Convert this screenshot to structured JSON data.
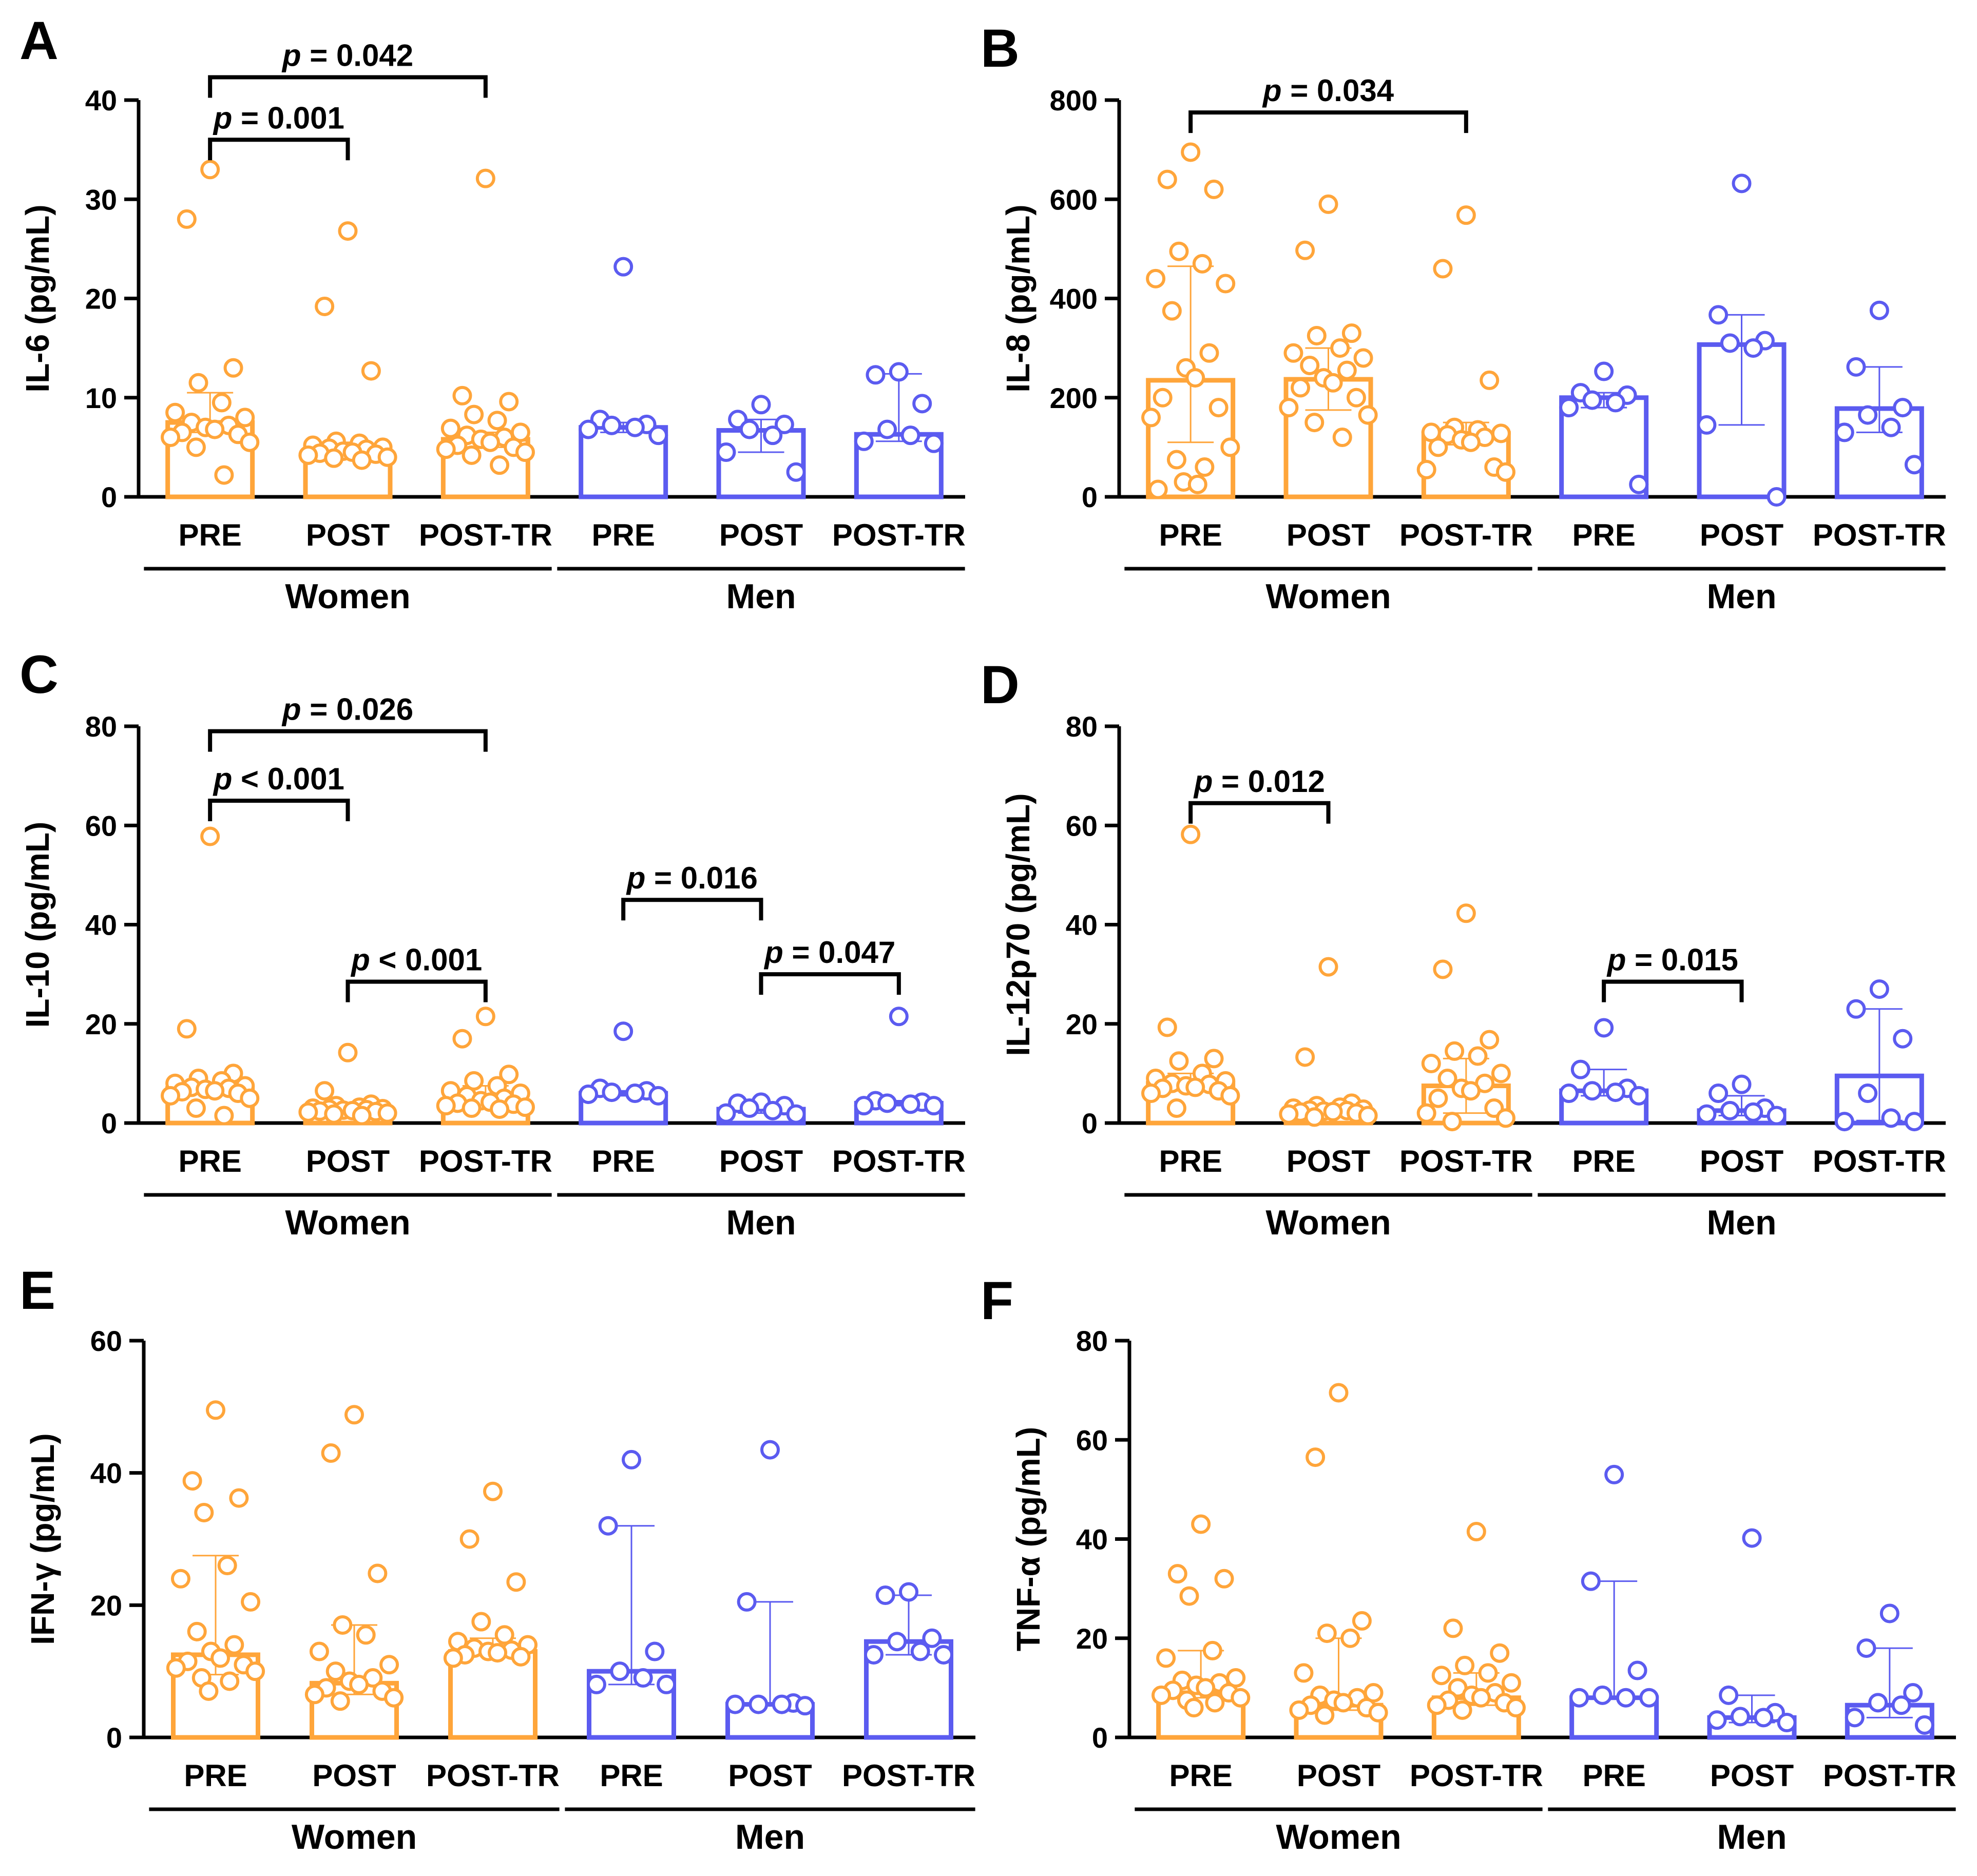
{
  "colors": {
    "women": "#FFA53A",
    "men": "#5B5BF0",
    "axis": "#000000"
  },
  "chart_data": [
    {
      "id": "A",
      "type": "bar",
      "letter": "A",
      "ylabel": "IL-6 (pg/mL)",
      "ylim": [
        0,
        40
      ],
      "yticks": [
        0,
        10,
        20,
        30,
        40
      ],
      "categories": [
        "PRE",
        "POST",
        "POST-TR",
        "PRE",
        "POST",
        "POST-TR"
      ],
      "groups": [
        "Women",
        "Men"
      ],
      "series": [
        {
          "name": "Women PRE",
          "group": "Women",
          "bar": 7.5,
          "err": [
            6.5,
            10.5
          ],
          "points": [
            33,
            28,
            13,
            11.5,
            9.5,
            8.5,
            8,
            7.5,
            7.2,
            7,
            6.8,
            6.5,
            6.3,
            6,
            5.5,
            5,
            2.2
          ]
        },
        {
          "name": "Women POST",
          "group": "Women",
          "bar": 4.5,
          "err": [
            4,
            5.5
          ],
          "points": [
            26.8,
            19.2,
            12.7,
            5.6,
            5.4,
            5.2,
            5,
            4.9,
            4.8,
            4.6,
            4.5,
            4.4,
            4.3,
            4.2,
            4,
            3.9,
            3.7
          ]
        },
        {
          "name": "Women POST-TR",
          "group": "Women",
          "bar": 5.8,
          "err": [
            5,
            6.5
          ],
          "points": [
            32.1,
            10.2,
            9.6,
            8.3,
            7.7,
            6.9,
            6.5,
            6.2,
            6,
            5.8,
            5.5,
            5.2,
            5,
            4.8,
            4.5,
            4.2,
            3.2
          ]
        },
        {
          "name": "Men PRE",
          "group": "Men",
          "bar": 7.0,
          "err": [
            6.5,
            7.5
          ],
          "points": [
            23.2,
            7.8,
            7.3,
            7.2,
            7.0,
            6.8,
            6.2
          ]
        },
        {
          "name": "Men POST",
          "group": "Men",
          "bar": 6.7,
          "err": [
            4.5,
            7.8
          ],
          "points": [
            9.3,
            7.8,
            7.3,
            6.8,
            6.2,
            4.5,
            2.5
          ]
        },
        {
          "name": "Men POST-TR",
          "group": "Men",
          "bar": 6.3,
          "err": [
            5.6,
            12.4
          ],
          "points": [
            12.6,
            12.3,
            9.4,
            6.8,
            6.2,
            5.6,
            5.4
          ]
        }
      ],
      "brackets": [
        {
          "from": 0,
          "to": 2,
          "y": 42.3,
          "label_p": "p",
          "label_rest": " = 0.042"
        },
        {
          "from": 0,
          "to": 1,
          "y": 36.0,
          "label_p": "p",
          "label_rest": " = 0.001"
        }
      ]
    },
    {
      "id": "B",
      "type": "bar",
      "letter": "B",
      "ylabel": "IL-8 (pg/mL)",
      "ylim": [
        0,
        800
      ],
      "yticks": [
        0,
        200,
        400,
        600,
        800
      ],
      "categories": [
        "PRE",
        "POST",
        "POST-TR",
        "PRE",
        "POST",
        "POST-TR"
      ],
      "groups": [
        "Women",
        "Men"
      ],
      "series": [
        {
          "name": "Women PRE",
          "group": "Women",
          "bar": 235,
          "err": [
            110,
            465
          ],
          "points": [
            695,
            640,
            620,
            495,
            470,
            440,
            430,
            375,
            290,
            260,
            240,
            200,
            180,
            160,
            100,
            75,
            60,
            30,
            25,
            15
          ]
        },
        {
          "name": "Women POST",
          "group": "Women",
          "bar": 237,
          "err": [
            175,
            300
          ],
          "points": [
            590,
            497,
            330,
            325,
            300,
            290,
            280,
            265,
            255,
            240,
            230,
            220,
            200,
            180,
            165,
            150,
            120
          ]
        },
        {
          "name": "Women POST-TR",
          "group": "Women",
          "bar": 128,
          "err": [
            105,
            150
          ],
          "points": [
            568,
            460,
            235,
            140,
            135,
            130,
            128,
            125,
            120,
            115,
            110,
            100,
            60,
            55,
            50
          ]
        },
        {
          "name": "Men PRE",
          "group": "Men",
          "bar": 200,
          "err": [
            180,
            210
          ],
          "points": [
            253,
            210,
            205,
            195,
            190,
            180,
            25
          ]
        },
        {
          "name": "Men POST",
          "group": "Men",
          "bar": 307,
          "err": [
            145,
            367
          ],
          "points": [
            632,
            367,
            315,
            310,
            300,
            145,
            0
          ]
        },
        {
          "name": "Men POST-TR",
          "group": "Men",
          "bar": 178,
          "err": [
            130,
            262
          ],
          "points": [
            376,
            262,
            180,
            165,
            140,
            130,
            65
          ]
        }
      ],
      "brackets": [
        {
          "from": 0,
          "to": 2,
          "y": 775,
          "label_p": "p",
          "label_rest": " = 0.034"
        }
      ]
    },
    {
      "id": "C",
      "type": "bar",
      "letter": "C",
      "ylabel": "IL-10 (pg/mL)",
      "ylim": [
        0,
        80
      ],
      "yticks": [
        0,
        20,
        40,
        60,
        80
      ],
      "categories": [
        "PRE",
        "POST",
        "POST-TR",
        "PRE",
        "POST",
        "POST-TR"
      ],
      "groups": [
        "Women",
        "Men"
      ],
      "series": [
        {
          "name": "Women PRE",
          "group": "Women",
          "bar": 7.0,
          "err": [
            6,
            8
          ],
          "points": [
            57.8,
            19,
            10,
            9,
            8.5,
            8,
            7.5,
            7.2,
            7,
            6.8,
            6.5,
            6.3,
            6,
            5.5,
            5,
            3,
            1.5
          ]
        },
        {
          "name": "Women POST",
          "group": "Women",
          "bar": 2.8,
          "err": [
            2.5,
            3.5
          ],
          "points": [
            14.2,
            6.5,
            3.8,
            3.5,
            3.2,
            3,
            2.9,
            2.8,
            2.7,
            2.6,
            2.5,
            2.4,
            2.3,
            2.2,
            2,
            1.8,
            1.5
          ]
        },
        {
          "name": "Women POST-TR",
          "group": "Women",
          "bar": 4.5,
          "err": [
            3.5,
            7.5
          ],
          "points": [
            21.5,
            17,
            9.8,
            8.5,
            7.5,
            6.5,
            6,
            5.5,
            5,
            4.5,
            4.2,
            4,
            3.8,
            3.5,
            3.2,
            3,
            2.8
          ]
        },
        {
          "name": "Men PRE",
          "group": "Men",
          "bar": 6.0,
          "err": [
            5.5,
            6.5
          ],
          "points": [
            18.5,
            7,
            6.5,
            6.2,
            6,
            5.8,
            5.5
          ]
        },
        {
          "name": "Men POST",
          "group": "Men",
          "bar": 2.8,
          "err": [
            2,
            4
          ],
          "points": [
            4.2,
            4,
            3.5,
            3,
            2.5,
            2,
            1.8
          ]
        },
        {
          "name": "Men POST-TR",
          "group": "Men",
          "bar": 4.0,
          "err": [
            3.5,
            4.5
          ],
          "points": [
            21.5,
            4.5,
            4.2,
            4,
            3.8,
            3.5,
            3.5
          ]
        }
      ],
      "brackets": [
        {
          "from": 0,
          "to": 2,
          "y": 79.0,
          "label_p": "p",
          "label_rest": " = 0.026"
        },
        {
          "from": 0,
          "to": 1,
          "y": 65.0,
          "label_p": "p",
          "label_rest": " < 0.001"
        },
        {
          "from": 1,
          "to": 2,
          "y": 28.5,
          "label_p": "p",
          "label_rest": " < 0.001"
        },
        {
          "from": 3,
          "to": 4,
          "y": 45.0,
          "label_p": "p",
          "label_rest": " = 0.016"
        },
        {
          "from": 4,
          "to": 5,
          "y": 30.0,
          "label_p": "p",
          "label_rest": " = 0.047"
        }
      ]
    },
    {
      "id": "D",
      "type": "bar",
      "letter": "D",
      "ylabel": "IL-12p70 (pg/mL)",
      "ylim": [
        0,
        80
      ],
      "yticks": [
        0,
        20,
        40,
        60,
        80
      ],
      "categories": [
        "PRE",
        "POST",
        "POST-TR",
        "PRE",
        "POST",
        "POST-TR"
      ],
      "groups": [
        "Women",
        "Men"
      ],
      "series": [
        {
          "name": "Women PRE",
          "group": "Women",
          "bar": 8.0,
          "err": [
            6.5,
            10
          ],
          "points": [
            58.2,
            19.3,
            13,
            12.5,
            10,
            9,
            8.5,
            8,
            7.8,
            7.5,
            7.2,
            7,
            6.5,
            6,
            5.5,
            3
          ]
        },
        {
          "name": "Women POST",
          "group": "Women",
          "bar": 2.5,
          "err": [
            2,
            3.5
          ],
          "points": [
            31.5,
            13.3,
            4,
            3.5,
            3.2,
            3,
            2.8,
            2.6,
            2.5,
            2.4,
            2.3,
            2.2,
            2,
            1.8,
            1.5,
            1.2
          ]
        },
        {
          "name": "Women POST-TR",
          "group": "Women",
          "bar": 7.5,
          "err": [
            2,
            13
          ],
          "points": [
            42.3,
            31,
            16.8,
            14.5,
            13.5,
            12,
            10,
            9,
            8,
            7,
            6.5,
            5,
            3,
            2,
            1,
            0.3
          ]
        },
        {
          "name": "Men PRE",
          "group": "Men",
          "bar": 6.5,
          "err": [
            5.5,
            10.8
          ],
          "points": [
            19.2,
            10.8,
            7,
            6.5,
            6.2,
            6,
            5.5
          ]
        },
        {
          "name": "Men POST",
          "group": "Men",
          "bar": 2.5,
          "err": [
            1.5,
            5.5
          ],
          "points": [
            7.8,
            6,
            3,
            2.5,
            2.2,
            1.8,
            1.5
          ]
        },
        {
          "name": "Men POST-TR",
          "group": "Men",
          "bar": 9.5,
          "err": [
            0.5,
            23
          ],
          "points": [
            27,
            23,
            17,
            6,
            1,
            0.3,
            0.3
          ]
        }
      ],
      "brackets": [
        {
          "from": 0,
          "to": 1,
          "y": 64.5,
          "label_p": "p",
          "label_rest": " = 0.012"
        },
        {
          "from": 3,
          "to": 4,
          "y": 28.5,
          "label_p": "p",
          "label_rest": " = 0.015"
        }
      ]
    },
    {
      "id": "E",
      "type": "bar",
      "letter": "E",
      "ylabel": "IFN-γ (pg/mL)",
      "ylim": [
        0,
        60
      ],
      "yticks": [
        0,
        20,
        40,
        60
      ],
      "categories": [
        "PRE",
        "POST",
        "POST-TR",
        "PRE",
        "POST",
        "POST-TR"
      ],
      "groups": [
        "Women",
        "Men"
      ],
      "series": [
        {
          "name": "Women PRE",
          "group": "Women",
          "bar": 12.5,
          "err": [
            9.5,
            27.5
          ],
          "points": [
            49.5,
            38.8,
            36.2,
            34,
            26,
            24,
            20.5,
            16,
            14,
            13,
            12,
            11.5,
            11,
            10.5,
            10,
            9,
            8.5,
            7
          ]
        },
        {
          "name": "Women POST",
          "group": "Women",
          "bar": 8.2,
          "err": [
            6.5,
            17
          ],
          "points": [
            48.8,
            43,
            24.8,
            17,
            15.5,
            13,
            11,
            10,
            9,
            8.5,
            8,
            7.5,
            7,
            6.5,
            6,
            5.5
          ]
        },
        {
          "name": "Women POST-TR",
          "group": "Women",
          "bar": 13.0,
          "err": [
            12.5,
            15
          ],
          "points": [
            37.2,
            30,
            23.5,
            17.5,
            15.5,
            14.5,
            14,
            13.5,
            13.2,
            13,
            12.8,
            12.5,
            12.2,
            12
          ]
        },
        {
          "name": "Men PRE",
          "group": "Men",
          "bar": 10.0,
          "err": [
            8,
            32
          ],
          "points": [
            42,
            32,
            13,
            10,
            9,
            8,
            8
          ]
        },
        {
          "name": "Men POST",
          "group": "Men",
          "bar": 5.0,
          "err": [
            5,
            20.5
          ],
          "points": [
            43.5,
            20.5,
            5.2,
            5,
            5,
            5,
            4.8
          ]
        },
        {
          "name": "Men POST-TR",
          "group": "Men",
          "bar": 14.5,
          "err": [
            12.5,
            21.5
          ],
          "points": [
            22,
            21.5,
            15,
            14.5,
            13,
            12.5,
            12.5
          ]
        }
      ],
      "brackets": []
    },
    {
      "id": "F",
      "type": "bar",
      "letter": "F",
      "ylabel": "TNF-α (pg/mL)",
      "ylim": [
        0,
        80
      ],
      "yticks": [
        0,
        20,
        40,
        60,
        80
      ],
      "categories": [
        "PRE",
        "POST",
        "POST-TR",
        "PRE",
        "POST",
        "POST-TR"
      ],
      "groups": [
        "Women",
        "Men"
      ],
      "series": [
        {
          "name": "Women PRE",
          "group": "Women",
          "bar": 9.0,
          "err": [
            8,
            17.5
          ],
          "points": [
            43,
            33,
            32,
            28.5,
            17.5,
            16,
            12,
            11.5,
            11,
            10.5,
            10,
            9.5,
            9,
            8.5,
            8,
            7.5,
            7,
            6
          ]
        },
        {
          "name": "Women POST",
          "group": "Women",
          "bar": 6.5,
          "err": [
            5.5,
            20
          ],
          "points": [
            69.5,
            56.5,
            23.5,
            21,
            20,
            13,
            9,
            8.5,
            8,
            7.5,
            7,
            6.5,
            6,
            5.5,
            5,
            4.5
          ]
        },
        {
          "name": "Women POST-TR",
          "group": "Women",
          "bar": 8.0,
          "err": [
            6.5,
            13
          ],
          "points": [
            41.5,
            22,
            17,
            14.5,
            13,
            12.5,
            11,
            10,
            9,
            8.5,
            8,
            7.5,
            7,
            6.5,
            6,
            5.5
          ]
        },
        {
          "name": "Men PRE",
          "group": "Men",
          "bar": 8.0,
          "err": [
            8,
            31.5
          ],
          "points": [
            53,
            31.5,
            13.5,
            8.5,
            8,
            8,
            8
          ]
        },
        {
          "name": "Men POST",
          "group": "Men",
          "bar": 4.0,
          "err": [
            3,
            8.5
          ],
          "points": [
            40.2,
            8.5,
            5,
            4.2,
            4,
            3.5,
            3
          ]
        },
        {
          "name": "Men POST-TR",
          "group": "Men",
          "bar": 6.5,
          "err": [
            4,
            18
          ],
          "points": [
            25,
            18,
            9,
            7,
            6.5,
            4,
            2.5
          ]
        }
      ],
      "brackets": []
    }
  ]
}
